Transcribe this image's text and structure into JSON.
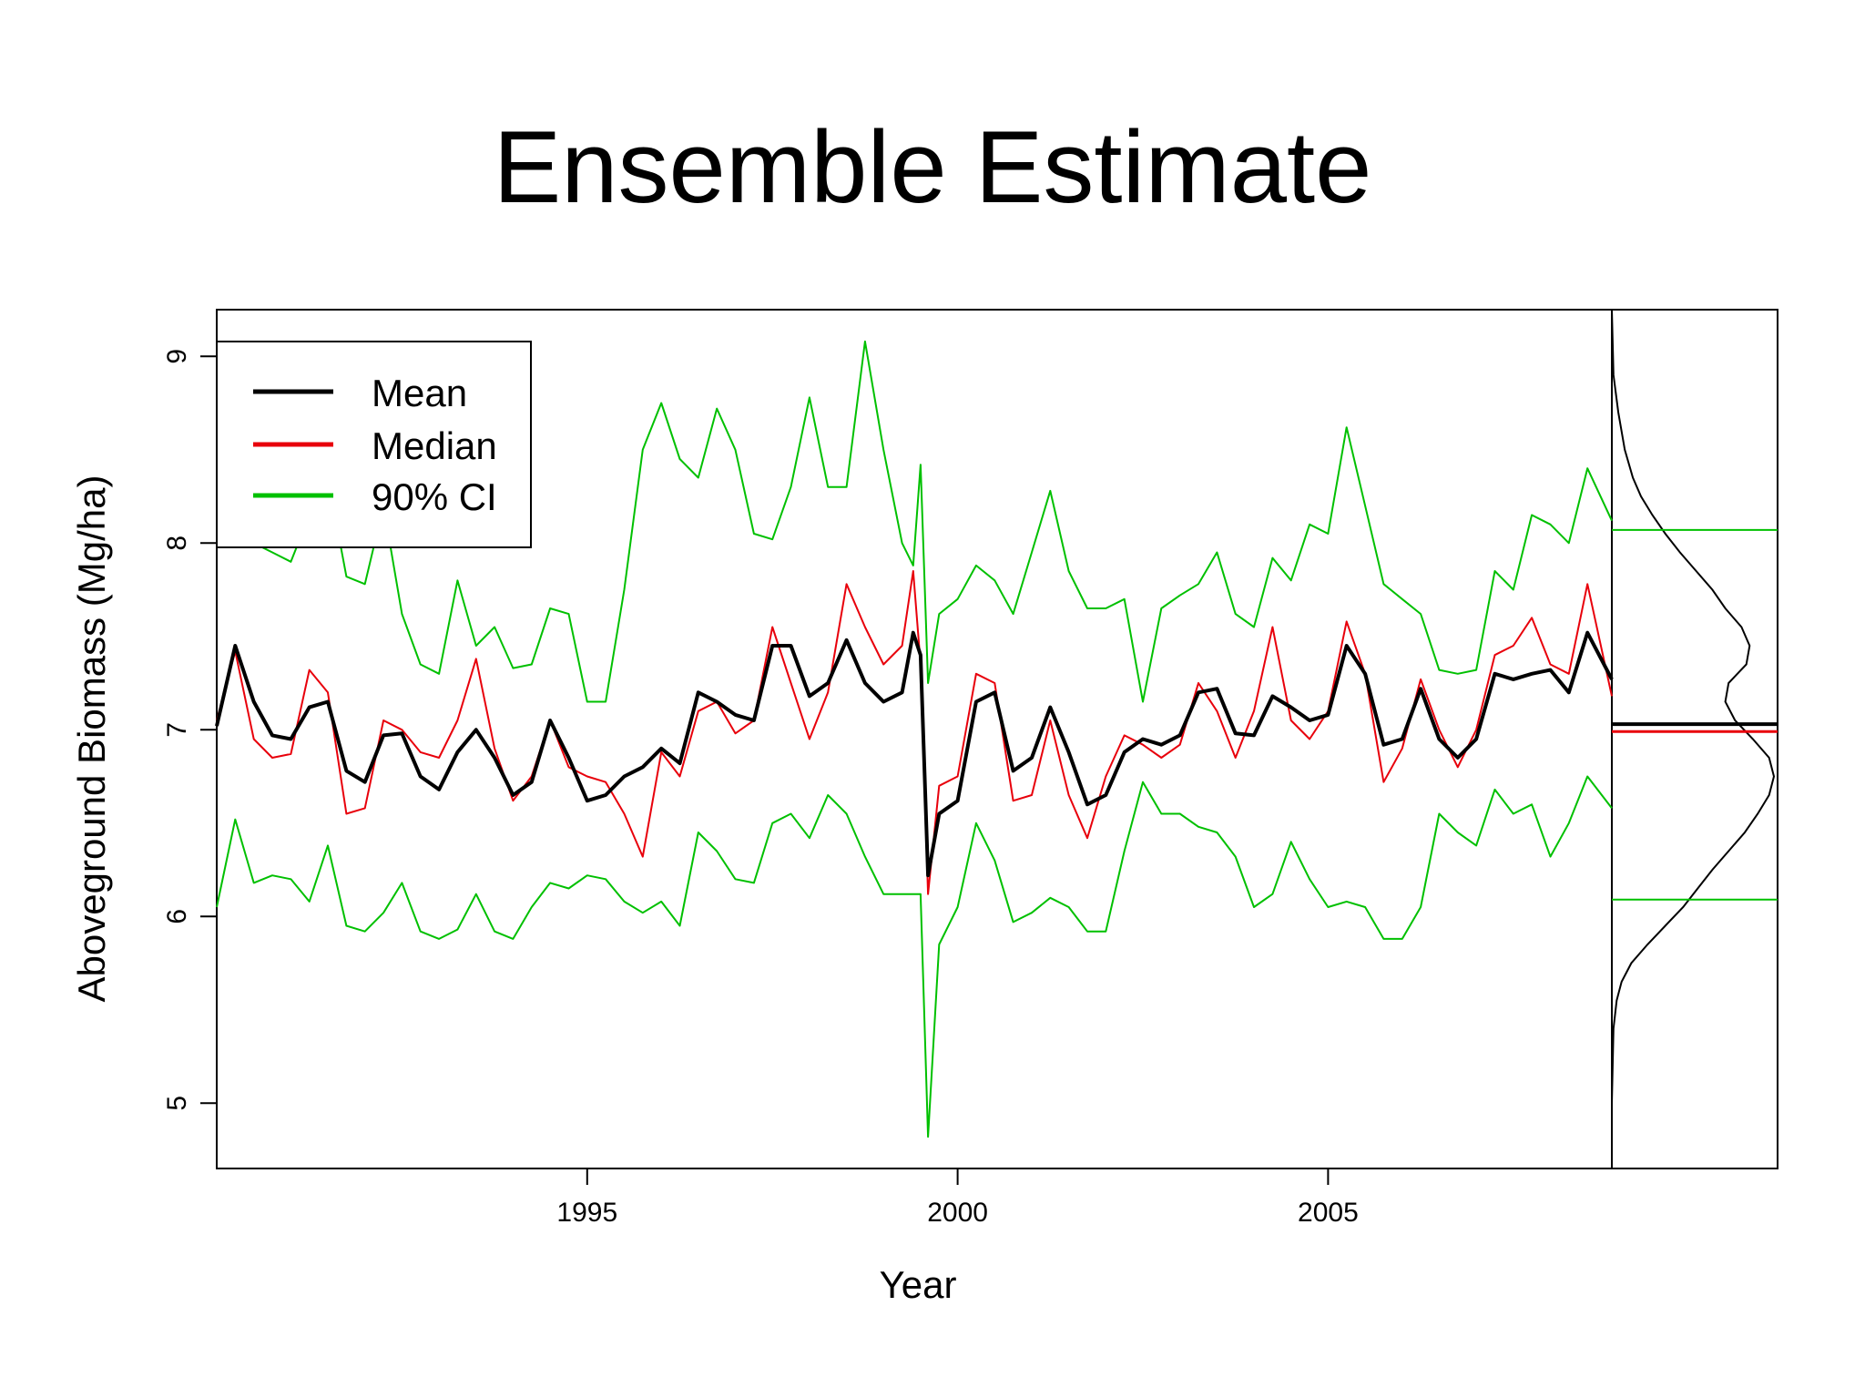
{
  "slide": {
    "title": "Ensemble Estimate"
  },
  "chart_data": {
    "type": "line",
    "title": "Ensemble Estimate",
    "xlabel": "Year",
    "ylabel": "Aboveground Biomass (Mg/ha)",
    "xlim": [
      1990.0,
      2008.83
    ],
    "ylim": [
      4.65,
      9.25
    ],
    "x_ticks": [
      1995,
      2000,
      2005
    ],
    "y_ticks": [
      5,
      6,
      7,
      8,
      9
    ],
    "grid": false,
    "legend_position": "top-left",
    "colors": {
      "mean": "#000000",
      "median": "#e8000b",
      "ci": "#00c000"
    },
    "series": [
      {
        "name": "Mean",
        "key": "mean",
        "x": [
          1990.0,
          1990.25,
          1990.5,
          1990.75,
          1991.0,
          1991.25,
          1991.5,
          1991.75,
          1992.0,
          1992.25,
          1992.5,
          1992.75,
          1993.0,
          1993.25,
          1993.5,
          1993.75,
          1994.0,
          1994.25,
          1994.5,
          1994.75,
          1995.0,
          1995.25,
          1995.5,
          1995.75,
          1996.0,
          1996.25,
          1996.5,
          1996.75,
          1997.0,
          1997.25,
          1997.5,
          1997.75,
          1998.0,
          1998.25,
          1998.5,
          1998.75,
          1999.0,
          1999.25,
          1999.4,
          1999.5,
          1999.6,
          1999.75,
          2000.0,
          2000.25,
          2000.5,
          2000.75,
          2001.0,
          2001.25,
          2001.5,
          2001.75,
          2002.0,
          2002.25,
          2002.5,
          2002.75,
          2003.0,
          2003.25,
          2003.5,
          2003.75,
          2004.0,
          2004.25,
          2004.5,
          2004.75,
          2005.0,
          2005.25,
          2005.5,
          2005.75,
          2006.0,
          2006.25,
          2006.5,
          2006.75,
          2007.0,
          2007.25,
          2007.5,
          2007.75,
          2008.0,
          2008.25,
          2008.5,
          2008.83
        ],
        "y": [
          7.02,
          7.45,
          7.15,
          6.97,
          6.95,
          7.12,
          7.15,
          6.78,
          6.72,
          6.97,
          6.98,
          6.75,
          6.68,
          6.88,
          7.0,
          6.85,
          6.65,
          6.72,
          7.05,
          6.85,
          6.62,
          6.65,
          6.75,
          6.8,
          6.9,
          6.82,
          7.2,
          7.15,
          7.08,
          7.05,
          7.45,
          7.45,
          7.18,
          7.25,
          7.48,
          7.25,
          7.15,
          7.2,
          7.52,
          7.4,
          6.22,
          6.55,
          6.62,
          7.15,
          7.2,
          6.78,
          6.85,
          7.12,
          6.88,
          6.6,
          6.65,
          6.88,
          6.95,
          6.92,
          6.97,
          7.2,
          7.22,
          6.98,
          6.97,
          7.18,
          7.12,
          7.05,
          7.08,
          7.45,
          7.3,
          6.92,
          6.95,
          7.22,
          6.95,
          6.85,
          6.95,
          7.3,
          7.27,
          7.3,
          7.32,
          7.2,
          7.52,
          7.27
        ]
      },
      {
        "name": "Median",
        "key": "median",
        "x": [
          1990.0,
          1990.25,
          1990.5,
          1990.75,
          1991.0,
          1991.25,
          1991.5,
          1991.75,
          1992.0,
          1992.25,
          1992.5,
          1992.75,
          1993.0,
          1993.25,
          1993.5,
          1993.75,
          1994.0,
          1994.25,
          1994.5,
          1994.75,
          1995.0,
          1995.25,
          1995.5,
          1995.75,
          1996.0,
          1996.25,
          1996.5,
          1996.75,
          1997.0,
          1997.25,
          1997.5,
          1997.75,
          1998.0,
          1998.25,
          1998.5,
          1998.75,
          1999.0,
          1999.25,
          1999.4,
          1999.5,
          1999.6,
          1999.75,
          2000.0,
          2000.25,
          2000.5,
          2000.75,
          2001.0,
          2001.25,
          2001.5,
          2001.75,
          2002.0,
          2002.25,
          2002.5,
          2002.75,
          2003.0,
          2003.25,
          2003.5,
          2003.75,
          2004.0,
          2004.25,
          2004.5,
          2004.75,
          2005.0,
          2005.25,
          2005.5,
          2005.75,
          2006.0,
          2006.25,
          2006.5,
          2006.75,
          2007.0,
          2007.25,
          2007.5,
          2007.75,
          2008.0,
          2008.25,
          2008.5,
          2008.83
        ],
        "y": [
          7.05,
          7.42,
          6.95,
          6.85,
          6.87,
          7.32,
          7.2,
          6.55,
          6.58,
          7.05,
          7.0,
          6.88,
          6.85,
          7.05,
          7.38,
          6.9,
          6.62,
          6.75,
          7.05,
          6.8,
          6.75,
          6.72,
          6.55,
          6.32,
          6.88,
          6.75,
          7.1,
          7.15,
          6.98,
          7.05,
          7.55,
          7.25,
          6.95,
          7.2,
          7.78,
          7.55,
          7.35,
          7.45,
          7.85,
          7.35,
          6.12,
          6.7,
          6.75,
          7.3,
          7.25,
          6.62,
          6.65,
          7.05,
          6.65,
          6.42,
          6.75,
          6.97,
          6.92,
          6.85,
          6.92,
          7.25,
          7.1,
          6.85,
          7.1,
          7.55,
          7.05,
          6.95,
          7.1,
          7.58,
          7.3,
          6.72,
          6.9,
          7.27,
          7.0,
          6.8,
          7.0,
          7.4,
          7.45,
          7.6,
          7.35,
          7.3,
          7.78,
          7.18
        ]
      },
      {
        "name": "90% CI",
        "key": "ci_upper",
        "x": [
          1990.0,
          1990.25,
          1990.5,
          1990.75,
          1991.0,
          1991.25,
          1991.5,
          1991.75,
          1992.0,
          1992.25,
          1992.5,
          1992.75,
          1993.0,
          1993.25,
          1993.5,
          1993.75,
          1994.0,
          1994.25,
          1994.5,
          1994.75,
          1995.0,
          1995.25,
          1995.5,
          1995.75,
          1996.0,
          1996.25,
          1996.5,
          1996.75,
          1997.0,
          1997.25,
          1997.5,
          1997.75,
          1998.0,
          1998.25,
          1998.5,
          1998.75,
          1999.0,
          1999.25,
          1999.4,
          1999.5,
          1999.6,
          1999.75,
          2000.0,
          2000.25,
          2000.5,
          2000.75,
          2001.0,
          2001.25,
          2001.5,
          2001.75,
          2002.0,
          2002.25,
          2002.5,
          2002.75,
          2003.0,
          2003.25,
          2003.5,
          2003.75,
          2004.0,
          2004.25,
          2004.5,
          2004.75,
          2005.0,
          2005.25,
          2005.5,
          2005.75,
          2006.0,
          2006.25,
          2006.5,
          2006.75,
          2007.0,
          2007.25,
          2007.5,
          2007.75,
          2008.0,
          2008.25,
          2008.5,
          2008.83
        ],
        "y": [
          8.07,
          8.55,
          8.0,
          7.95,
          7.9,
          8.15,
          8.35,
          7.82,
          7.78,
          8.2,
          7.62,
          7.35,
          7.3,
          7.8,
          7.45,
          7.55,
          7.33,
          7.35,
          7.65,
          7.62,
          7.15,
          7.15,
          7.75,
          8.5,
          8.75,
          8.45,
          8.35,
          8.72,
          8.5,
          8.05,
          8.02,
          8.3,
          8.78,
          8.3,
          8.3,
          9.08,
          8.5,
          8.0,
          7.88,
          8.42,
          7.25,
          7.62,
          7.7,
          7.88,
          7.8,
          7.62,
          7.95,
          8.28,
          7.85,
          7.65,
          7.65,
          7.7,
          7.15,
          7.65,
          7.72,
          7.78,
          7.95,
          7.62,
          7.55,
          7.92,
          7.8,
          8.1,
          8.05,
          8.62,
          8.2,
          7.78,
          7.7,
          7.62,
          7.32,
          7.3,
          7.32,
          7.85,
          7.75,
          8.15,
          8.1,
          8.0,
          8.4,
          8.12
        ]
      },
      {
        "name": "",
        "key": "ci_lower",
        "x": [
          1990.0,
          1990.25,
          1990.5,
          1990.75,
          1991.0,
          1991.25,
          1991.5,
          1991.75,
          1992.0,
          1992.25,
          1992.5,
          1992.75,
          1993.0,
          1993.25,
          1993.5,
          1993.75,
          1994.0,
          1994.25,
          1994.5,
          1994.75,
          1995.0,
          1995.25,
          1995.5,
          1995.75,
          1996.0,
          1996.25,
          1996.5,
          1996.75,
          1997.0,
          1997.25,
          1997.5,
          1997.75,
          1998.0,
          1998.25,
          1998.5,
          1998.75,
          1999.0,
          1999.25,
          1999.4,
          1999.5,
          1999.6,
          1999.75,
          2000.0,
          2000.25,
          2000.5,
          2000.75,
          2001.0,
          2001.25,
          2001.5,
          2001.75,
          2002.0,
          2002.25,
          2002.5,
          2002.75,
          2003.0,
          2003.25,
          2003.5,
          2003.75,
          2004.0,
          2004.25,
          2004.5,
          2004.75,
          2005.0,
          2005.25,
          2005.5,
          2005.75,
          2006.0,
          2006.25,
          2006.5,
          2006.75,
          2007.0,
          2007.25,
          2007.5,
          2007.75,
          2008.0,
          2008.25,
          2008.5,
          2008.83
        ],
        "y": [
          6.05,
          6.52,
          6.18,
          6.22,
          6.2,
          6.08,
          6.38,
          5.95,
          5.92,
          6.02,
          6.18,
          5.92,
          5.88,
          5.93,
          6.12,
          5.92,
          5.88,
          6.05,
          6.18,
          6.15,
          6.22,
          6.2,
          6.08,
          6.02,
          6.08,
          5.95,
          6.45,
          6.35,
          6.2,
          6.18,
          6.5,
          6.55,
          6.42,
          6.65,
          6.55,
          6.32,
          6.12,
          6.12,
          6.12,
          6.12,
          4.82,
          5.85,
          6.05,
          6.5,
          6.3,
          5.97,
          6.02,
          6.1,
          6.05,
          5.92,
          5.92,
          6.35,
          6.72,
          6.55,
          6.55,
          6.48,
          6.45,
          6.32,
          6.05,
          6.12,
          6.4,
          6.2,
          6.05,
          6.08,
          6.05,
          5.88,
          5.88,
          6.05,
          6.55,
          6.45,
          6.38,
          6.68,
          6.55,
          6.6,
          6.32,
          6.5,
          6.75,
          6.58
        ]
      }
    ],
    "density_panel": {
      "mean": 7.03,
      "median": 6.99,
      "ci": [
        6.09,
        8.07
      ],
      "ys": [
        4.65,
        5.0,
        5.4,
        5.55,
        5.65,
        5.75,
        5.85,
        5.95,
        6.05,
        6.15,
        6.25,
        6.35,
        6.45,
        6.55,
        6.65,
        6.75,
        6.85,
        6.95,
        7.05,
        7.15,
        7.25,
        7.35,
        7.45,
        7.55,
        7.65,
        7.75,
        7.85,
        7.95,
        8.05,
        8.15,
        8.25,
        8.35,
        8.5,
        8.7,
        8.9,
        9.25
      ],
      "density": [
        0.0,
        0.0,
        0.01,
        0.03,
        0.06,
        0.12,
        0.22,
        0.33,
        0.44,
        0.53,
        0.62,
        0.72,
        0.82,
        0.9,
        0.97,
        1.0,
        0.97,
        0.87,
        0.76,
        0.7,
        0.72,
        0.83,
        0.85,
        0.8,
        0.7,
        0.62,
        0.52,
        0.42,
        0.33,
        0.25,
        0.18,
        0.13,
        0.08,
        0.04,
        0.01,
        0.0
      ]
    }
  }
}
